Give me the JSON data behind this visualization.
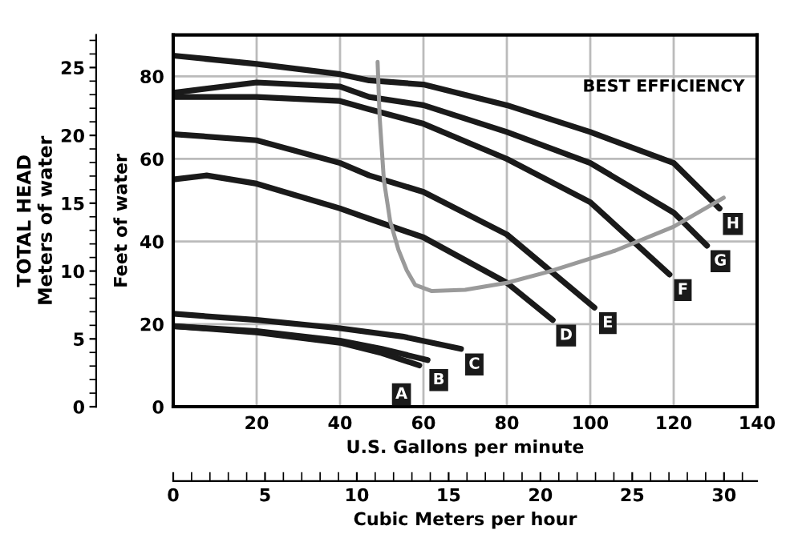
{
  "chart_data": {
    "type": "line",
    "xlabel": "U.S. Gallons per minute",
    "ylabel": "Feet of water",
    "y2label": "TOTAL HEAD\nMeters of water",
    "x2label": "Cubic Meters per hour",
    "xlim": [
      0,
      140
    ],
    "xticks": [
      {
        "value": 0,
        "label": null
      },
      20,
      40,
      60,
      80,
      100,
      120,
      140
    ],
    "ylim": [
      0,
      90
    ],
    "yticks": [
      0,
      20,
      40,
      60,
      80
    ],
    "y2lim": [
      0,
      27.4
    ],
    "y2ticks": [
      0,
      5,
      10,
      15,
      20,
      25
    ],
    "x2lim": [
      0,
      31.8
    ],
    "x2ticks": [
      0,
      5,
      10,
      15,
      20,
      25,
      30
    ],
    "grid": true,
    "legend": false,
    "marker": "none",
    "line_style": "solid",
    "annotations": [
      "BEST EFFICIENCY"
    ],
    "series": [
      {
        "name": "A",
        "color": "#1a1a1a",
        "x": [
          0,
          20,
          40,
          50,
          59
        ],
        "values": [
          19.5,
          18,
          15.5,
          13,
          10
        ]
      },
      {
        "name": "B",
        "color": "#1a1a1a",
        "x": [
          0,
          20,
          40,
          50,
          61
        ],
        "values": [
          19.5,
          18.3,
          16,
          14,
          11.3
        ]
      },
      {
        "name": "C",
        "color": "#1a1a1a",
        "x": [
          0,
          20,
          40,
          55,
          69
        ],
        "values": [
          22.5,
          21,
          19,
          17,
          14
        ]
      },
      {
        "name": "D",
        "color": "#1a1a1a",
        "x": [
          0,
          8,
          20,
          40,
          47,
          60,
          80,
          91
        ],
        "values": [
          55,
          56,
          54,
          48,
          45.5,
          41,
          30,
          21
        ]
      },
      {
        "name": "E",
        "color": "#1a1a1a",
        "x": [
          0,
          20,
          40,
          47,
          60,
          80,
          101
        ],
        "values": [
          66,
          64.5,
          59,
          56,
          52,
          41.7,
          24
        ]
      },
      {
        "name": "F",
        "color": "#1a1a1a",
        "x": [
          0,
          20,
          40,
          47,
          60,
          80,
          100,
          119
        ],
        "values": [
          75,
          75,
          74,
          72,
          68.5,
          60,
          49.5,
          32
        ]
      },
      {
        "name": "G",
        "color": "#1a1a1a",
        "x": [
          0,
          20,
          40,
          47,
          60,
          80,
          100,
          120,
          128
        ],
        "values": [
          76,
          78.5,
          77.5,
          75,
          73,
          66.5,
          59,
          47,
          39
        ]
      },
      {
        "name": "H",
        "color": "#1a1a1a",
        "x": [
          0,
          20,
          40,
          47,
          60,
          80,
          100,
          120,
          131
        ],
        "values": [
          85,
          83,
          80.5,
          79,
          78,
          73,
          66.5,
          59,
          48
        ]
      },
      {
        "color": "#9a9a9a",
        "x": [
          49,
          49.5,
          50.5,
          52,
          54,
          56,
          58,
          62,
          70,
          80,
          90,
          106,
          120,
          132
        ],
        "values": [
          83.5,
          70,
          55,
          45,
          38,
          33,
          29.5,
          28,
          28.3,
          30,
          32.7,
          37.8,
          43.6,
          50.6
        ]
      }
    ]
  }
}
